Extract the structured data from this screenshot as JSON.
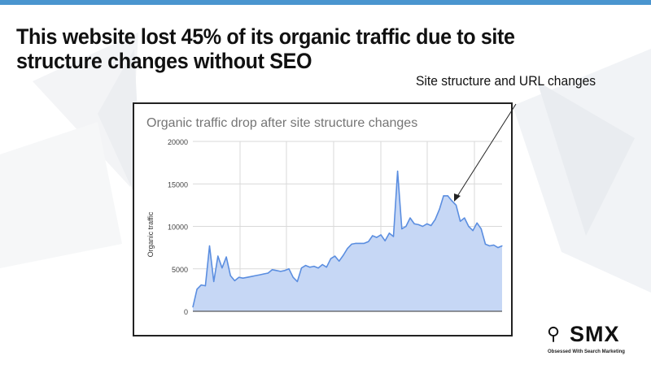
{
  "slide": {
    "title": "This website lost 45% of its organic traffic due to site structure changes without SEO",
    "annotation": "Site structure and URL changes",
    "accent_color": "#4a95cf"
  },
  "chart_data": {
    "type": "area",
    "title": "Organic traffic drop after site structure changes",
    "xlabel": "",
    "ylabel": "Organic traffic",
    "ylim": [
      0,
      20000
    ],
    "y_ticks": [
      0,
      5000,
      10000,
      15000,
      20000
    ],
    "x_tick_labels": [],
    "grid": true,
    "legend": "none",
    "series": [
      {
        "color": "#5b8ee0",
        "fill": "#c6d7f5",
        "values": [
          500,
          2600,
          3100,
          3000,
          7700,
          3500,
          6500,
          5100,
          6400,
          4200,
          3600,
          4000,
          3900,
          4000,
          4100,
          4200,
          4300,
          4400,
          4500,
          4900,
          4800,
          4700,
          4800,
          5000,
          4000,
          3500,
          5100,
          5400,
          5200,
          5300,
          5100,
          5500,
          5200,
          6200,
          6500,
          5900,
          6600,
          7400,
          7900,
          8000,
          8000,
          8000,
          8200,
          8900,
          8700,
          9000,
          8300,
          9200,
          8800,
          16500,
          9700,
          10000,
          11000,
          10300,
          10200,
          10000,
          10300,
          10100,
          10800,
          12000,
          13600,
          13600,
          13000,
          12500,
          10600,
          11000,
          10000,
          9500,
          10400,
          9700,
          7900,
          7700,
          7800,
          7500,
          7700
        ]
      }
    ]
  },
  "logo": {
    "text": "SMX",
    "tagline": "Obsessed With Search Marketing",
    "icon": "magnifier-icon"
  }
}
